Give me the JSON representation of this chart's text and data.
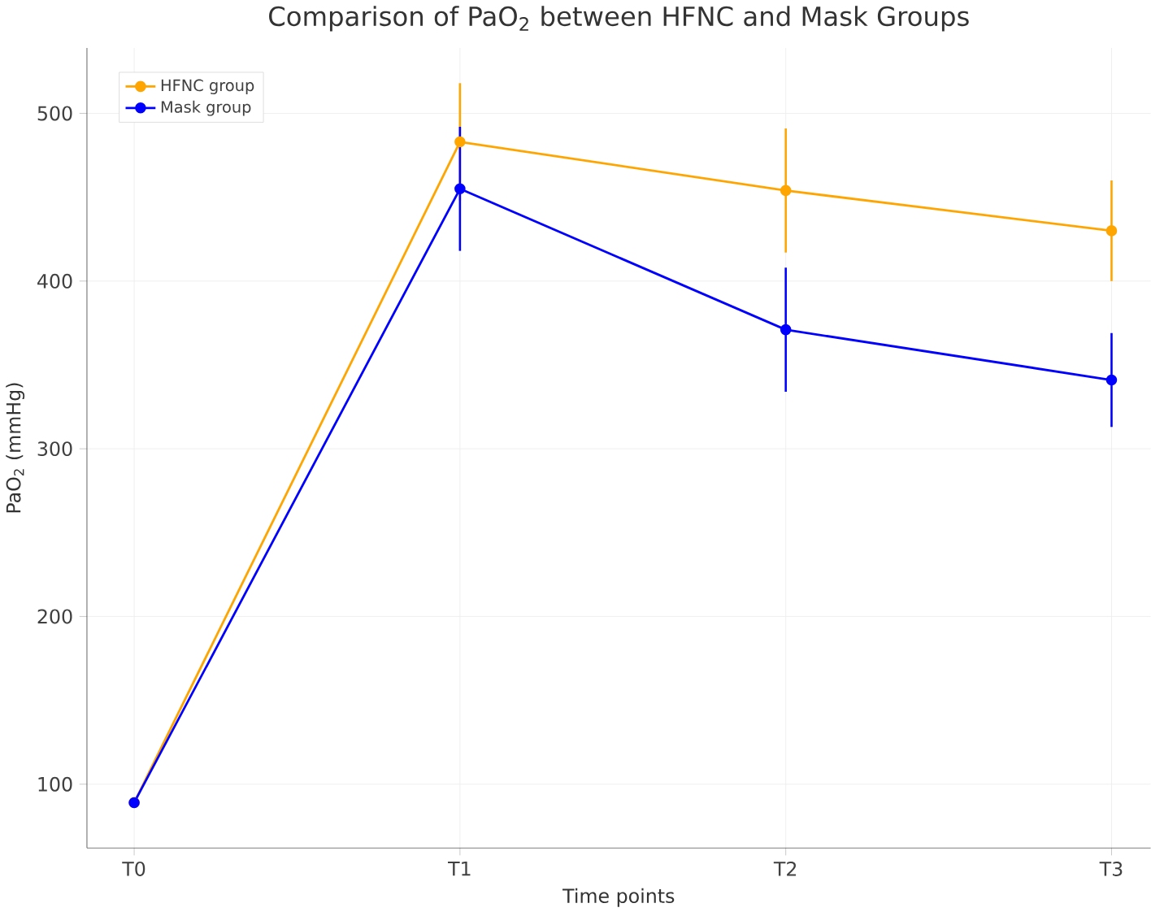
{
  "chart_data": {
    "type": "line",
    "title": "Comparison of PaO$_{2}$ between HFNC and Mask Groups",
    "xlabel": "Time points",
    "ylabel": "PaO$_{2}$ (mmHg)",
    "categories": [
      "T0",
      "T1",
      "T2",
      "T3"
    ],
    "series": [
      {
        "name": "HFNC group",
        "color": "#ffa500",
        "values": [
          89,
          483,
          454,
          430
        ],
        "errors": [
          null,
          35,
          37,
          30
        ]
      },
      {
        "name": "Mask group",
        "color": "#0000ff",
        "values": [
          89,
          455,
          371,
          341
        ],
        "errors": [
          null,
          37,
          37,
          28
        ]
      }
    ],
    "ylim": [
      62,
      539
    ],
    "yticks": [
      100,
      200,
      300,
      400,
      500
    ],
    "grid": true,
    "legend": "top left",
    "marker": "circle",
    "line_style": "solid"
  }
}
